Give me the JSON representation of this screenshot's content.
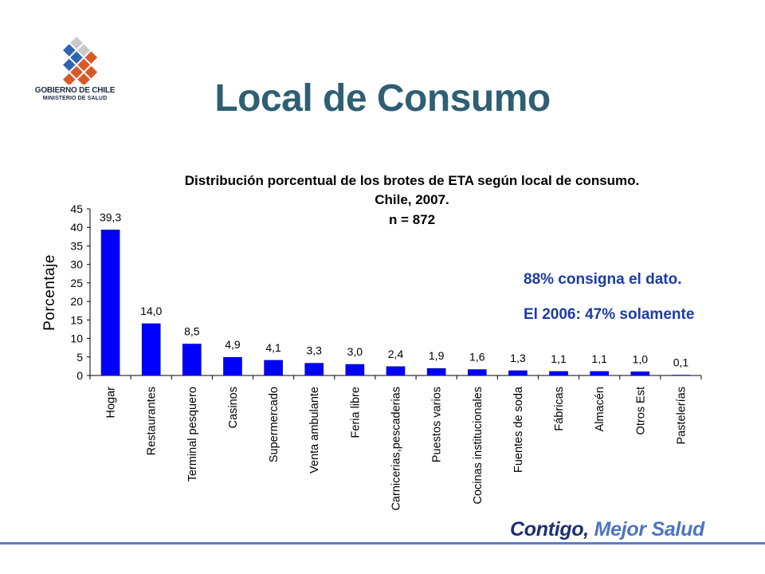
{
  "header": {
    "logo_line1": "GOBIERNO DE CHILE",
    "logo_line2": "MINISTERIO DE SALUD",
    "title": "Local de Consumo"
  },
  "notes": {
    "line1": "88% consigna el dato.",
    "line2": "El 2006: 47% solamente"
  },
  "footer": {
    "slogan_part1": "Contigo,",
    "slogan_part2": "Mejor Salud"
  },
  "colors": {
    "title": "#2e5f73",
    "bar": "#0000ff",
    "note": "#1c3ba6",
    "slogan_dark": "#1e2f75",
    "slogan_light": "#4e74c4"
  },
  "chart_data": {
    "type": "bar",
    "title_lines": [
      "Distribución porcentual de los brotes de ETA según local de consumo.",
      "Chile,  2007.",
      "n = 872"
    ],
    "ylabel": "Porcentaje",
    "xlabel": "",
    "ylim": [
      0,
      45
    ],
    "yticks": [
      0,
      5,
      10,
      15,
      20,
      25,
      30,
      35,
      40,
      45
    ],
    "grid": false,
    "categories": [
      "Hogar",
      "Restaurantes",
      "Terminal pesquero",
      "Casinos",
      "Supermercado",
      "Venta ambulante",
      "Feria libre",
      "Carnicerias,pescaderias",
      "Puestos varios",
      "Cocinas institucionales",
      "Fuentes de soda",
      "Fábricas",
      "Almacén",
      "Otros Est",
      "Pastelerías"
    ],
    "values": [
      39.3,
      14.0,
      8.5,
      4.9,
      4.1,
      3.3,
      3.0,
      2.4,
      1.9,
      1.6,
      1.3,
      1.1,
      1.1,
      1.0,
      0.1
    ],
    "value_labels": [
      "39,3",
      "14,0",
      "8,5",
      "4,9",
      "4,1",
      "3,3",
      "3,0",
      "2,4",
      "1,9",
      "1,6",
      "1,3",
      "1,1",
      "1,1",
      "1,0",
      "0,1"
    ]
  }
}
